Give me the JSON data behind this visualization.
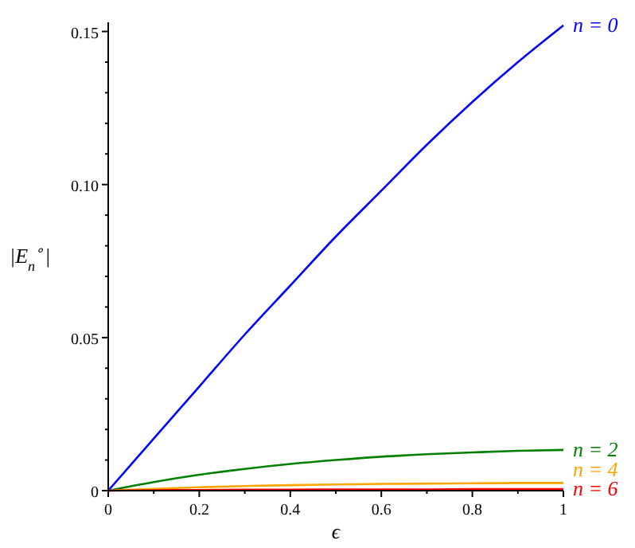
{
  "chart_data": {
    "type": "line",
    "xlabel": "ϵ",
    "ylabel": "|E$_{n}$$^{∘}$|",
    "x": [
      0,
      0.1,
      0.2,
      0.3,
      0.4,
      0.5,
      0.6,
      0.7,
      0.8,
      0.9,
      1
    ],
    "xlim": [
      0,
      1
    ],
    "ylim": [
      0,
      0.153
    ],
    "xticks": [
      0,
      {
        "value": 0.1,
        "label": null
      },
      0.2,
      {
        "value": 0.3,
        "label": null
      },
      0.4,
      {
        "value": 0.5,
        "label": null
      },
      0.6,
      {
        "value": 0.7,
        "label": null
      },
      0.8,
      {
        "value": 0.9,
        "label": null
      },
      1
    ],
    "yticks": [
      0,
      {
        "value": 0.01,
        "label": null
      },
      {
        "value": 0.02,
        "label": null
      },
      {
        "value": 0.03,
        "label": null
      },
      {
        "value": 0.04,
        "label": null
      },
      0.05,
      {
        "value": 0.06,
        "label": null
      },
      {
        "value": 0.07,
        "label": null
      },
      {
        "value": 0.08,
        "label": null
      },
      {
        "value": 0.09,
        "label": null
      },
      {
        "value": 0.1,
        "label": "0.10"
      },
      {
        "value": 0.11,
        "label": null
      },
      {
        "value": 0.12,
        "label": null
      },
      {
        "value": 0.13,
        "label": null
      },
      {
        "value": 0.14,
        "label": null
      },
      0.15
    ],
    "grid": false,
    "marker": "none",
    "line_style": "solid",
    "series": [
      {
        "name": "n = 0",
        "color": "#0000ff",
        "values": [
          0,
          0.017,
          0.034,
          0.051,
          0.067,
          0.083,
          0.098,
          0.113,
          0.127,
          0.14,
          0.152
        ]
      },
      {
        "name": "n = 2",
        "color": "#008000",
        "values": [
          0,
          0.0028,
          0.0052,
          0.0071,
          0.0087,
          0.01,
          0.0111,
          0.0119,
          0.0125,
          0.013,
          0.0133
        ]
      },
      {
        "name": "n = 4",
        "color": "#ffa500",
        "values": [
          0,
          0.0006,
          0.0011,
          0.0015,
          0.0018,
          0.002,
          0.0022,
          0.0023,
          0.0024,
          0.0025,
          0.0025
        ]
      },
      {
        "name": "n = 6",
        "color": "#ff0000",
        "values": [
          0,
          0.0001,
          0.0002,
          0.0003,
          0.0003,
          0.0004,
          0.0004,
          0.0004,
          0.0005,
          0.0005,
          0.0005
        ]
      }
    ]
  }
}
